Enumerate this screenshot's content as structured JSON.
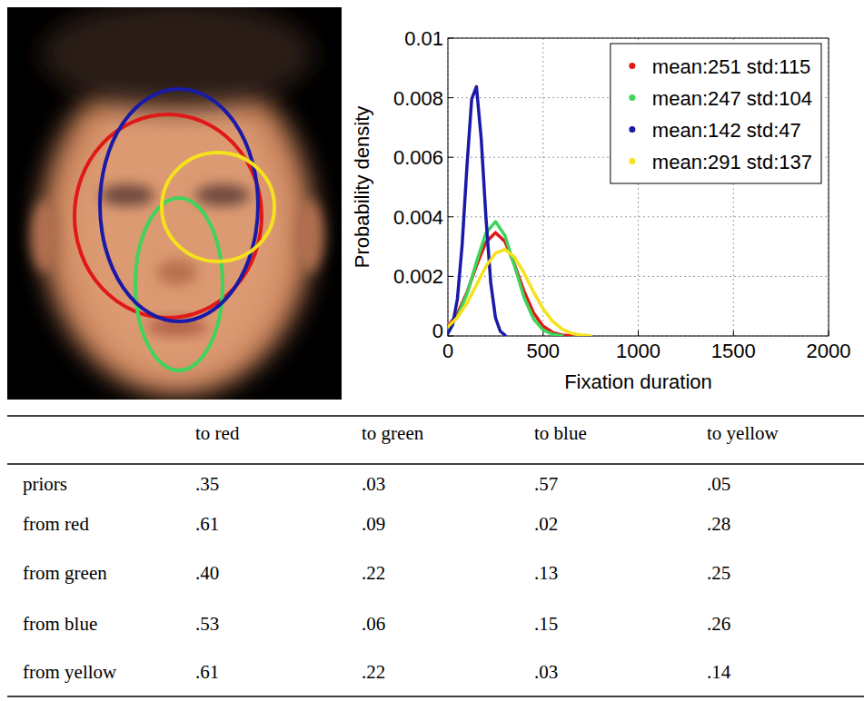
{
  "chart_data": {
    "type": "line",
    "xlabel": "Fixation duration",
    "ylabel": "Probability density",
    "xlim": [
      0,
      2000
    ],
    "xticks": [
      0,
      500,
      1000,
      1500,
      2000
    ],
    "ylim": [
      0,
      0.01
    ],
    "yticks": [
      0,
      0.002,
      0.004,
      0.006,
      0.008,
      0.01
    ],
    "grid": true,
    "legend": "top-right",
    "series": [
      {
        "name": "mean:251 std:115",
        "color": "#e01818",
        "x": [
          0,
          50,
          100,
          150,
          200,
          250,
          300,
          350,
          400,
          450,
          500,
          550,
          600,
          650
        ],
        "values": [
          0.00032,
          0.00075,
          0.00146,
          0.00236,
          0.00315,
          0.00347,
          0.00317,
          0.0024,
          0.0015,
          0.00078,
          0.00033,
          0.00012,
          3e-05,
          1e-05
        ]
      },
      {
        "name": "mean:247 std:104",
        "color": "#3fd45a",
        "x": [
          0,
          50,
          100,
          150,
          200,
          250,
          300,
          350,
          400,
          450,
          500,
          550,
          600
        ],
        "values": [
          0.00023,
          0.00064,
          0.00141,
          0.00248,
          0.00346,
          0.00384,
          0.00337,
          0.00235,
          0.0013,
          0.00057,
          0.0002,
          6e-05,
          1e-05
        ]
      },
      {
        "name": "mean:142 std:47",
        "color": "#1a1aa8",
        "x": [
          0,
          25,
          50,
          75,
          100,
          125,
          150,
          175,
          200,
          225,
          250,
          275,
          300
        ],
        "values": [
          9e-05,
          0.00038,
          0.00125,
          0.00307,
          0.00569,
          0.00795,
          0.00837,
          0.00663,
          0.00397,
          0.00179,
          0.00061,
          0.00016,
          3e-05
        ]
      },
      {
        "name": "mean:291 std:137",
        "color": "#f5e21c",
        "x": [
          0,
          50,
          100,
          150,
          200,
          250,
          300,
          350,
          400,
          450,
          500,
          550,
          600,
          650,
          700,
          750
        ],
        "values": [
          0.00031,
          0.00062,
          0.0011,
          0.00171,
          0.00234,
          0.00278,
          0.00291,
          0.00265,
          0.00212,
          0.00148,
          0.00091,
          0.00049,
          0.00023,
          9e-05,
          3e-05,
          1e-05
        ]
      }
    ]
  },
  "table": {
    "columns": [
      "to red",
      "to green",
      "to blue",
      "to yellow"
    ],
    "rows": [
      {
        "label": "priors",
        "cells": [
          ".35",
          ".03",
          ".57",
          ".05"
        ]
      },
      {
        "label": "from red",
        "cells": [
          ".61",
          ".09",
          ".02",
          ".28"
        ]
      },
      {
        "label": "from green",
        "cells": [
          ".40",
          ".22",
          ".13",
          ".25"
        ]
      },
      {
        "label": "from blue",
        "cells": [
          ".53",
          ".06",
          ".15",
          ".26"
        ]
      },
      {
        "label": "from yellow",
        "cells": [
          ".61",
          ".22",
          ".03",
          ".14"
        ]
      }
    ]
  }
}
